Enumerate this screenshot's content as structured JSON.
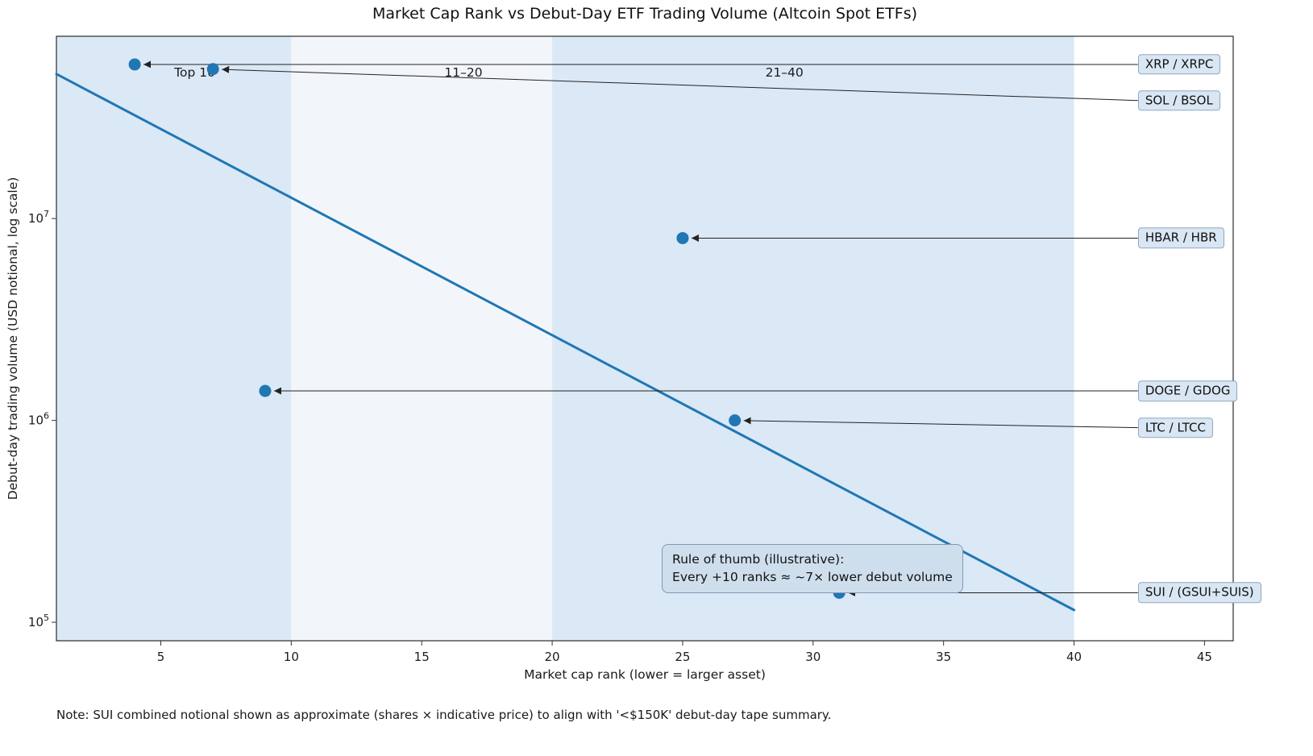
{
  "figure": {
    "note": "Note: SUI combined notional shown as approximate (shares × indicative price) to align with '<$150K' debut-day tape summary."
  },
  "chart_data": {
    "type": "scatter",
    "title": "Market Cap Rank vs Debut-Day ETF Trading Volume (Altcoin Spot ETFs)",
    "xlabel": "Market cap rank (lower = larger asset)",
    "ylabel": "Debut-day trading volume (USD notional, log scale)",
    "x_scale": "linear",
    "y_scale": "log",
    "xlim": [
      1,
      46.1
    ],
    "ylim": [
      81000,
      80000000
    ],
    "x_ticks": [
      5,
      10,
      15,
      20,
      25,
      30,
      35,
      40,
      45
    ],
    "y_ticks": [
      100000,
      1000000,
      10000000
    ],
    "grid": false,
    "legend": "none",
    "accent_color": "#1f77b4",
    "bands": [
      {
        "label": "Top 10",
        "from": 1,
        "to": 10,
        "color": "#dbe8f6",
        "label_rank": 6.3
      },
      {
        "label": "11–20",
        "from": 10,
        "to": 20,
        "color": "#f2f6fb",
        "label_rank": 16.6
      },
      {
        "label": "21–40",
        "from": 20,
        "to": 40,
        "color": "#dbe8f6",
        "label_rank": 28.9
      }
    ],
    "points": [
      {
        "label": "XRP / XRPC",
        "rank": 4,
        "volume": 58000000,
        "label_dy": 0
      },
      {
        "label": "SOL / BSOL",
        "rank": 7,
        "volume": 55000000,
        "label_dy": 39
      },
      {
        "label": "HBAR / HBR",
        "rank": 25,
        "volume": 8000000,
        "label_dy": 0
      },
      {
        "label": "DOGE / GDOG",
        "rank": 9,
        "volume": 1400000,
        "label_dy": 0
      },
      {
        "label": "LTC / LTCC",
        "rank": 27,
        "volume": 1000000,
        "label_dy": 9
      },
      {
        "label": "SUI / (GSUI+SUIS)",
        "rank": 31,
        "volume": 140000,
        "label_dy": 0
      }
    ],
    "trend_line": {
      "x": [
        1,
        40
      ],
      "y": [
        52000000,
        115000
      ]
    },
    "annotation": {
      "line1": "Rule of thumb (illustrative):",
      "line2": "Every +10 ranks ≈ ~7× lower debut volume",
      "anchor_rank": 24.2,
      "anchor_volume": 245000
    },
    "label_column_rank": 42.45
  }
}
